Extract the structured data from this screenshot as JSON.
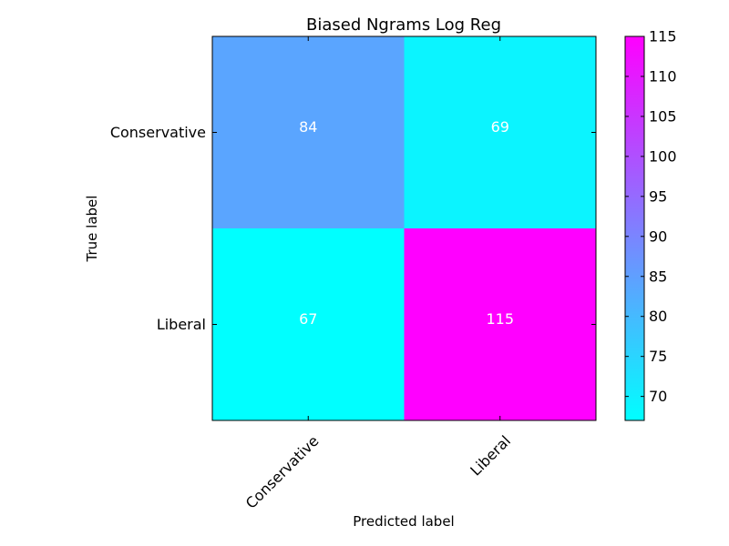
{
  "chart_data": {
    "type": "heatmap",
    "title": "Biased Ngrams Log Reg",
    "xlabel": "Predicted label",
    "ylabel": "True label",
    "x_categories": [
      "Conservative",
      "Liberal"
    ],
    "y_categories": [
      "Conservative",
      "Liberal"
    ],
    "values": [
      [
        84,
        69
      ],
      [
        67,
        115
      ]
    ],
    "cell_labels": [
      [
        "84",
        "69"
      ],
      [
        "67",
        "115"
      ]
    ],
    "colormap": {
      "low": "#00ffff",
      "high": "#ff00ff"
    },
    "colorbar": {
      "range": [
        67,
        115
      ],
      "ticks": [
        70,
        75,
        80,
        85,
        90,
        95,
        100,
        105,
        110,
        115
      ],
      "tick_labels": [
        "70",
        "75",
        "80",
        "85",
        "90",
        "95",
        "100",
        "105",
        "110",
        "115"
      ]
    },
    "grid": false
  }
}
